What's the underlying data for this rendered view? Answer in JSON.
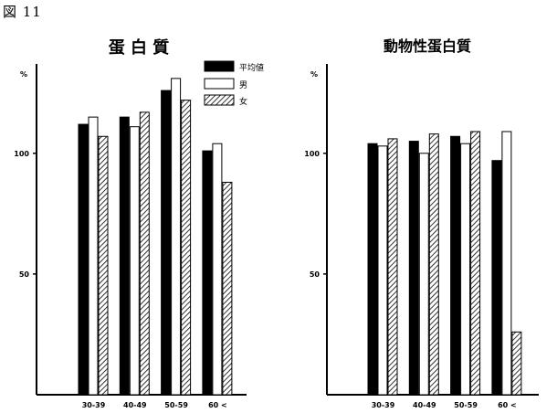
{
  "figure_label": "図 11",
  "legend": {
    "items": [
      {
        "label": "平均値",
        "style": "solid"
      },
      {
        "label": "男",
        "style": "white"
      },
      {
        "label": "女",
        "style": "hatched"
      }
    ]
  },
  "chart_data": [
    {
      "type": "bar",
      "title": "蛋 白 質",
      "ylabel": "%",
      "ylim": [
        0,
        137
      ],
      "yticks": [
        50,
        100
      ],
      "categories": [
        "30-39",
        "40-49",
        "50-59",
        "60 <"
      ],
      "series": [
        {
          "name": "平均値",
          "values": [
            112,
            115,
            126,
            101
          ]
        },
        {
          "name": "男",
          "values": [
            115,
            111,
            131,
            104
          ]
        },
        {
          "name": "女",
          "values": [
            107,
            117,
            122,
            88
          ]
        }
      ],
      "grid": false
    },
    {
      "type": "bar",
      "title": "動物性蛋白質",
      "ylabel": "%",
      "ylim": [
        0,
        137
      ],
      "yticks": [
        50,
        100
      ],
      "categories": [
        "30-39",
        "40-49",
        "50-59",
        "60 <"
      ],
      "series": [
        {
          "name": "平均値",
          "values": [
            104,
            105,
            107,
            97
          ]
        },
        {
          "name": "男",
          "values": [
            103,
            100,
            104,
            109
          ]
        },
        {
          "name": "女",
          "values": [
            106,
            108,
            109,
            26
          ]
        }
      ],
      "grid": false
    }
  ],
  "colors": {
    "solid": "#000000",
    "white": "#ffffff",
    "stroke": "#000000"
  }
}
